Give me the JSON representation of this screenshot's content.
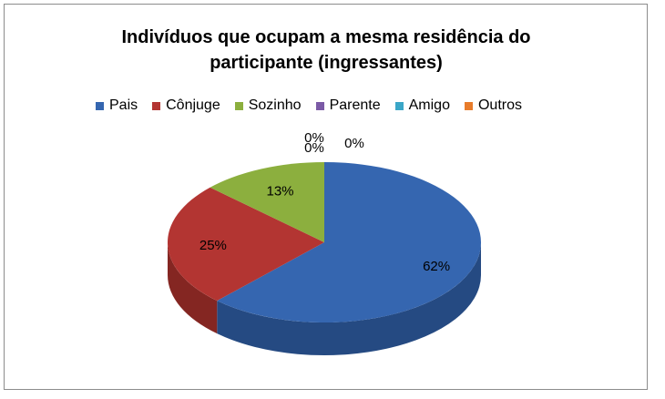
{
  "chart_data": {
    "type": "pie",
    "title": "Indivíduos que ocupam a mesma residência do participante (ingressantes)",
    "title_lines": [
      "Indivíduos que ocupam a mesma residência do",
      "participante (ingressantes)"
    ],
    "legend_position": "top",
    "three_d": true,
    "slices": [
      {
        "label": "Pais",
        "value": 62,
        "display": "62%",
        "color": "#3566b0",
        "side_color": "#254a82"
      },
      {
        "label": "Cônjuge",
        "value": 25,
        "display": "25%",
        "color": "#b33532",
        "side_color": "#842622"
      },
      {
        "label": "Sozinho",
        "value": 13,
        "display": "13%",
        "color": "#8caf3e",
        "side_color": "#667f2c"
      },
      {
        "label": "Parente",
        "value": 0,
        "display": "0%",
        "color": "#7b5aa6",
        "side_color": "#5a4279"
      },
      {
        "label": "Amigo",
        "value": 0,
        "display": "0%",
        "color": "#3aa6c7",
        "side_color": "#2a7a92"
      },
      {
        "label": "Outros",
        "value": 0,
        "display": "0%",
        "color": "#e87c2b",
        "side_color": "#a8591e"
      }
    ]
  }
}
